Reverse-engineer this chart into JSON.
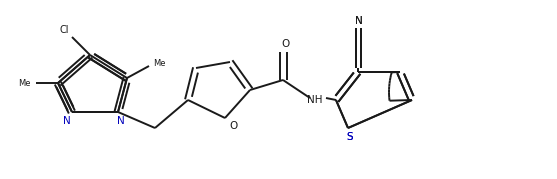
{
  "bg": "#ffffff",
  "lc": "#1a1a1a",
  "blue": "#0000bb",
  "lw": 1.4,
  "dbo": 3.5,
  "fs": 7.5,
  "fig_w": 5.57,
  "fig_h": 1.79,
  "dpi": 100,
  "xlim": [
    0,
    557
  ],
  "ylim": [
    0,
    179
  ]
}
